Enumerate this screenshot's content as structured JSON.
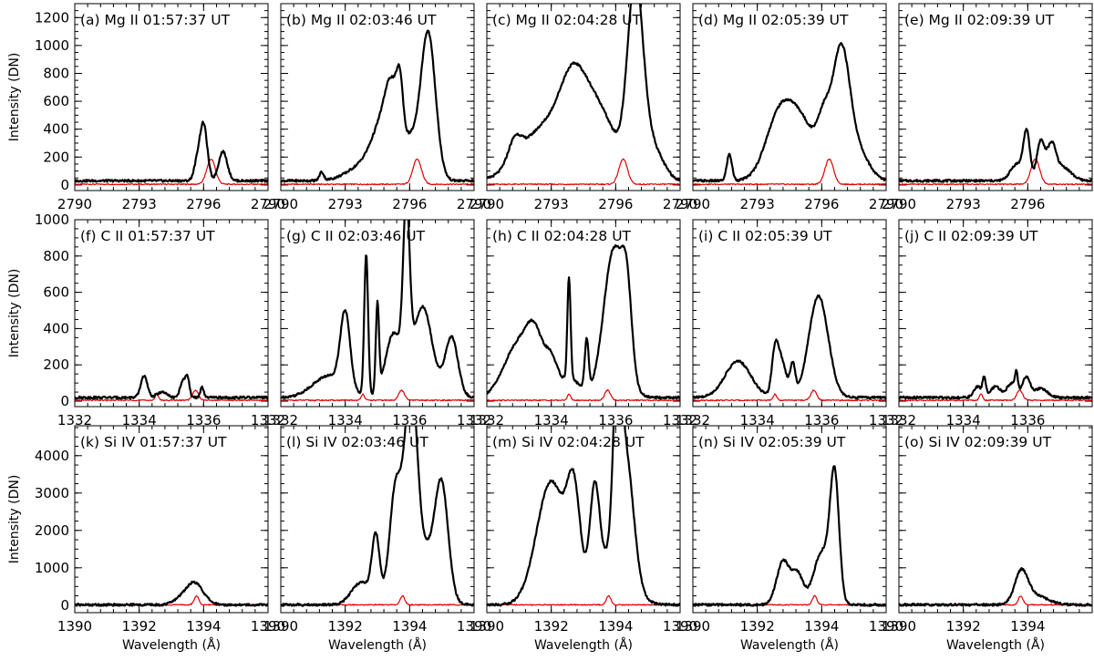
{
  "chart_data": {
    "type": "line",
    "layout": "3x5 grid of spectral panels",
    "colors": {
      "observed": "#000000",
      "reference": "#e00000"
    },
    "rows": [
      {
        "ion": "Mg II",
        "ylabel": "Intensity (DN)",
        "xlabel": "",
        "xlim": [
          2790,
          2799
        ],
        "ylim": [
          -40,
          1300
        ],
        "xticks": [
          2790,
          2793,
          2796
        ],
        "yticks": [
          0,
          200,
          400,
          600,
          800,
          1000,
          1200
        ],
        "reference": {
          "peaks": [
            [
              2796.35,
              180,
              0.2
            ]
          ],
          "baseline": 5
        },
        "panels": [
          {
            "title": "(a) Mg II 01:57:37 UT",
            "peaks": [
              [
                2795.7,
                120,
                0.15
              ],
              [
                2796.0,
                400,
                0.17
              ],
              [
                2796.9,
                210,
                0.2
              ]
            ],
            "baseline": 30
          },
          {
            "title": "(b) Mg II 02:03:46 UT",
            "peaks": [
              [
                2791.9,
                60,
                0.1
              ],
              [
                2794.0,
                120,
                0.8
              ],
              [
                2794.8,
                350,
                0.5
              ],
              [
                2795.2,
                420,
                0.3
              ],
              [
                2795.55,
                380,
                0.15
              ],
              [
                2796.0,
                250,
                0.3
              ],
              [
                2796.85,
                1070,
                0.35
              ]
            ],
            "baseline": 30
          },
          {
            "title": "(c) Mg II 02:04:28 UT",
            "peaks": [
              [
                2791.3,
                150,
                0.3
              ],
              [
                2792.8,
                400,
                1.2
              ],
              [
                2794.0,
                450,
                0.6
              ],
              [
                2795.2,
                480,
                0.8
              ],
              [
                2796.9,
                1250,
                0.35
              ],
              [
                2797.5,
                300,
                0.6
              ]
            ],
            "baseline": 20
          },
          {
            "title": "(d) Mg II 02:05:39 UT",
            "peaks": [
              [
                2791.7,
                190,
                0.12
              ],
              [
                2793.9,
                300,
                0.6
              ],
              [
                2794.9,
                450,
                0.8
              ],
              [
                2796.1,
                300,
                0.3
              ],
              [
                2796.9,
                900,
                0.4
              ],
              [
                2797.7,
                200,
                0.5
              ]
            ],
            "baseline": 30
          },
          {
            "title": "(e) Mg II 02:09:39 UT",
            "peaks": [
              [
                2795.5,
                120,
                0.3
              ],
              [
                2795.95,
                330,
                0.15
              ],
              [
                2796.6,
                280,
                0.18
              ],
              [
                2797.1,
                230,
                0.2
              ],
              [
                2797.6,
                100,
                0.4
              ]
            ],
            "baseline": 30
          }
        ]
      },
      {
        "ion": "C II",
        "ylabel": "Intensity (DN)",
        "xlabel": "",
        "xlim": [
          1332,
          1338
        ],
        "ylim": [
          -30,
          1000
        ],
        "xticks": [
          1332,
          1334,
          1336
        ],
        "yticks": [
          0,
          200,
          400,
          600,
          800,
          1000
        ],
        "reference": {
          "peaks": [
            [
              1334.55,
              35,
              0.05
            ],
            [
              1335.75,
              55,
              0.09
            ]
          ],
          "baseline": 5
        },
        "panels": [
          {
            "title": "(f) C II 01:57:37 UT",
            "peaks": [
              [
                1334.15,
                120,
                0.1
              ],
              [
                1334.7,
                30,
                0.15
              ],
              [
                1335.35,
                90,
                0.08
              ],
              [
                1335.5,
                110,
                0.06
              ],
              [
                1335.95,
                60,
                0.05
              ]
            ],
            "baseline": 20
          },
          {
            "title": "(g) C II 02:03:46 UT",
            "peaks": [
              [
                1333.5,
                120,
                0.5
              ],
              [
                1334.0,
                410,
                0.15
              ],
              [
                1334.65,
                780,
                0.06
              ],
              [
                1335.0,
                480,
                0.05
              ],
              [
                1335.5,
                350,
                0.25
              ],
              [
                1335.9,
                900,
                0.1
              ],
              [
                1336.4,
                500,
                0.3
              ],
              [
                1337.3,
                330,
                0.2
              ]
            ],
            "baseline": 20
          },
          {
            "title": "(h) C II 02:04:28 UT",
            "peaks": [
              [
                1333.0,
                300,
                0.45
              ],
              [
                1333.5,
                240,
                0.25
              ],
              [
                1334.0,
                180,
                0.2
              ],
              [
                1334.55,
                560,
                0.05
              ],
              [
                1334.6,
                100,
                0.3
              ],
              [
                1335.1,
                280,
                0.06
              ],
              [
                1335.95,
                820,
                0.32
              ],
              [
                1336.35,
                380,
                0.15
              ]
            ],
            "baseline": 20
          },
          {
            "title": "(i) C II 02:05:39 UT",
            "peaks": [
              [
                1333.4,
                200,
                0.4
              ],
              [
                1334.55,
                220,
                0.1
              ],
              [
                1334.75,
                200,
                0.15
              ],
              [
                1335.1,
                170,
                0.08
              ],
              [
                1335.9,
                560,
                0.3
              ]
            ],
            "baseline": 20
          },
          {
            "title": "(j) C II 02:09:39 UT",
            "peaks": [
              [
                1334.45,
                60,
                0.12
              ],
              [
                1334.65,
                100,
                0.05
              ],
              [
                1335.0,
                60,
                0.15
              ],
              [
                1335.5,
                80,
                0.15
              ],
              [
                1335.65,
                100,
                0.04
              ],
              [
                1335.95,
                110,
                0.12
              ],
              [
                1336.4,
                50,
                0.2
              ]
            ],
            "baseline": 20
          }
        ]
      },
      {
        "ion": "Si IV",
        "ylabel": "Intensity (DN)",
        "xlabel": "Wavelength (Å)",
        "xlim": [
          1390,
          1396
        ],
        "ylim": [
          -200,
          4800
        ],
        "xticks": [
          1390,
          1392,
          1394
        ],
        "yticks": [
          0,
          1000,
          2000,
          3000,
          4000
        ],
        "reference": {
          "peaks": [
            [
              1393.78,
              240,
              0.07
            ]
          ],
          "baseline": 10
        },
        "panels": [
          {
            "title": "(k) Si IV 01:57:37 UT",
            "peaks": [
              [
                1393.7,
                600,
                0.28
              ],
              [
                1393.2,
                80,
                0.2
              ]
            ],
            "baseline": 10
          },
          {
            "title": "(l) Si IV 02:03:46 UT",
            "peaks": [
              [
                1392.5,
                600,
                0.3
              ],
              [
                1392.95,
                1700,
                0.12
              ],
              [
                1393.55,
                2300,
                0.18
              ],
              [
                1394.05,
                4500,
                0.18
              ],
              [
                1393.8,
                1200,
                0.3
              ],
              [
                1395.0,
                2700,
                0.2
              ],
              [
                1394.5,
                1400,
                0.4
              ]
            ],
            "baseline": 10
          },
          {
            "title": "(m) Si IV 02:04:28 UT",
            "peaks": [
              [
                1392.0,
                3300,
                0.45
              ],
              [
                1392.7,
                2500,
                0.2
              ],
              [
                1393.35,
                2600,
                0.15
              ],
              [
                1394.05,
                3900,
                0.12
              ],
              [
                1394.3,
                3300,
                0.25
              ],
              [
                1393.9,
                1200,
                0.5
              ]
            ],
            "baseline": 10
          },
          {
            "title": "(n) Si IV 02:05:39 UT",
            "peaks": [
              [
                1392.8,
                1150,
                0.2
              ],
              [
                1393.25,
                800,
                0.18
              ],
              [
                1394.0,
                1400,
                0.25
              ],
              [
                1394.4,
                3300,
                0.14
              ]
            ],
            "baseline": 10
          },
          {
            "title": "(o) Si IV 02:09:39 UT",
            "peaks": [
              [
                1393.8,
                800,
                0.2
              ],
              [
                1394.2,
                250,
                0.4
              ]
            ],
            "baseline": 10
          }
        ]
      }
    ]
  }
}
